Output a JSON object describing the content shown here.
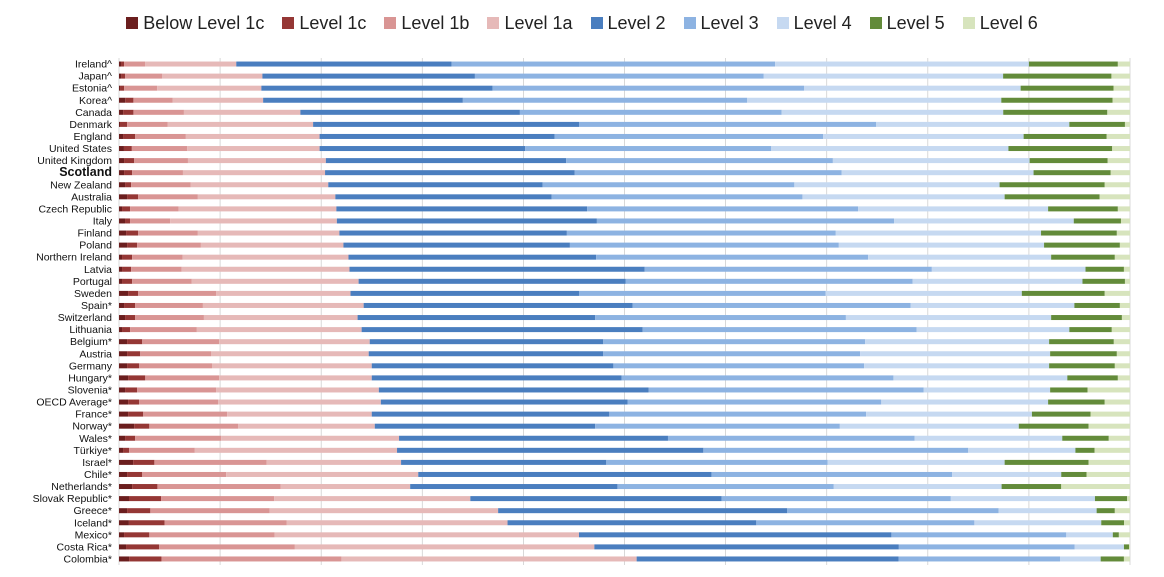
{
  "chart_data": {
    "type": "bar",
    "orientation": "horizontal",
    "stacked": true,
    "grid": true,
    "legend_position": "top",
    "xlim": [
      0,
      100
    ],
    "series": [
      {
        "name": "Below Level 1c",
        "color": "#6b1e1e"
      },
      {
        "name": "Level 1c",
        "color": "#953735"
      },
      {
        "name": "Level 1b",
        "color": "#d99594"
      },
      {
        "name": "Level 1a",
        "color": "#e6b9b8"
      },
      {
        "name": "Level 2",
        "color": "#4a7ebf"
      },
      {
        "name": "Level 3",
        "color": "#8db3e2"
      },
      {
        "name": "Level 4",
        "color": "#c6d9f1"
      },
      {
        "name": "Level 5",
        "color": "#638b3a"
      },
      {
        "name": "Level 6",
        "color": "#d7e4bd"
      }
    ],
    "categories": [
      "Ireland^",
      "Japan^",
      "Estonia^",
      "Korea^",
      "Canada",
      "Denmark",
      "England",
      "United States",
      "United Kingdom",
      "Scotland",
      "New Zealand",
      "Australia",
      "Czech Republic",
      "Italy",
      "Finland",
      "Poland",
      "Northern Ireland",
      "Latvia",
      "Portugal",
      "Sweden",
      "Spain*",
      "Switzerland",
      "Lithuania",
      "Belgium*",
      "Austria",
      "Germany",
      "Hungary*",
      "Slovenia*",
      "OECD Average*",
      "France*",
      "Norway*",
      "Wales*",
      "Türkiye*",
      "Israel*",
      "Chile*",
      "Netherlands*",
      "Slovak Republic*",
      "Greece*",
      "Iceland*",
      "Mexico*",
      "Costa Rica*",
      "Colombia*"
    ],
    "highlight": "Scotland",
    "values": [
      [
        0.2,
        0.3,
        2.1,
        9.0,
        21.3,
        32.0,
        25.1,
        8.8,
        1.2
      ],
      [
        0.2,
        0.4,
        3.6,
        9.7,
        20.6,
        28.0,
        23.2,
        10.5,
        1.8
      ],
      [
        0.1,
        0.4,
        3.2,
        10.1,
        22.4,
        30.2,
        21.0,
        9.0,
        1.6
      ],
      [
        0.6,
        0.8,
        3.8,
        8.8,
        19.4,
        27.6,
        24.7,
        10.8,
        1.7
      ],
      [
        0.4,
        1.0,
        4.9,
        11.3,
        21.3,
        25.4,
        21.5,
        10.1,
        2.2
      ],
      [
        0.1,
        0.7,
        4.0,
        14.4,
        26.3,
        29.4,
        19.1,
        5.5,
        0.5
      ],
      [
        0.4,
        1.2,
        5.0,
        13.2,
        23.2,
        26.5,
        19.8,
        8.2,
        2.3
      ],
      [
        0.5,
        0.8,
        5.6,
        13.4,
        20.8,
        24.9,
        24.0,
        10.5,
        1.8
      ],
      [
        0.5,
        1.0,
        5.3,
        13.6,
        23.7,
        26.3,
        19.4,
        7.7,
        2.2
      ],
      [
        0.5,
        0.8,
        5.0,
        14.0,
        24.6,
        26.3,
        18.9,
        7.6,
        1.9
      ],
      [
        0.6,
        0.6,
        5.9,
        13.6,
        21.2,
        24.9,
        20.3,
        10.4,
        2.5
      ],
      [
        0.8,
        1.1,
        5.9,
        13.6,
        21.4,
        24.8,
        20.0,
        9.4,
        3.0
      ],
      [
        0.3,
        0.8,
        4.8,
        15.6,
        24.8,
        26.8,
        18.8,
        6.9,
        1.2
      ],
      [
        0.6,
        0.5,
        4.0,
        16.6,
        25.9,
        29.6,
        17.9,
        4.7,
        0.9
      ],
      [
        0.7,
        1.2,
        5.9,
        14.0,
        22.5,
        26.6,
        20.3,
        7.5,
        1.3
      ],
      [
        0.8,
        1.0,
        6.3,
        14.1,
        22.4,
        26.6,
        20.3,
        7.5,
        1.0
      ],
      [
        0.3,
        1.0,
        5.0,
        16.4,
        24.5,
        26.9,
        18.1,
        6.3,
        1.5
      ],
      [
        0.3,
        0.9,
        5.0,
        16.6,
        29.2,
        28.4,
        15.2,
        3.8,
        0.6
      ],
      [
        0.3,
        1.0,
        5.9,
        16.5,
        26.4,
        28.4,
        16.8,
        4.2,
        0.5
      ],
      [
        0.9,
        1.0,
        7.7,
        13.3,
        22.6,
        24.4,
        19.4,
        8.2,
        2.5
      ],
      [
        0.5,
        1.1,
        6.7,
        15.9,
        26.6,
        27.5,
        16.2,
        4.5,
        1.0
      ],
      [
        0.6,
        1.0,
        6.8,
        15.2,
        23.5,
        24.8,
        20.3,
        7.0,
        0.8
      ],
      [
        0.3,
        0.8,
        6.6,
        16.3,
        27.8,
        27.1,
        15.1,
        4.2,
        1.8
      ],
      [
        0.8,
        1.5,
        7.6,
        14.9,
        23.1,
        25.9,
        18.2,
        6.4,
        1.6
      ],
      [
        0.8,
        1.3,
        7.0,
        15.6,
        23.2,
        25.4,
        18.8,
        6.6,
        1.3
      ],
      [
        0.8,
        1.2,
        7.2,
        15.8,
        23.9,
        24.8,
        18.3,
        6.5,
        1.5
      ],
      [
        0.9,
        1.7,
        7.3,
        15.1,
        24.7,
        26.9,
        17.2,
        5.0,
        1.2
      ],
      [
        0.6,
        1.2,
        7.8,
        16.1,
        26.7,
        27.2,
        12.5,
        3.7,
        4.2
      ],
      [
        0.9,
        1.1,
        7.8,
        16.1,
        24.4,
        25.1,
        16.5,
        5.6,
        2.5
      ],
      [
        0.9,
        1.5,
        8.3,
        14.3,
        23.5,
        25.4,
        16.4,
        5.8,
        3.9
      ],
      [
        1.5,
        1.5,
        8.8,
        13.5,
        21.8,
        24.2,
        17.7,
        6.9,
        4.1
      ],
      [
        0.6,
        1.0,
        8.5,
        17.6,
        26.6,
        24.4,
        14.6,
        4.6,
        2.1
      ],
      [
        0.4,
        0.6,
        6.5,
        20.0,
        30.3,
        26.2,
        10.6,
        1.9,
        3.5
      ],
      [
        1.4,
        2.1,
        11.1,
        13.3,
        20.3,
        21.9,
        17.5,
        8.3,
        4.1
      ],
      [
        0.8,
        1.5,
        8.3,
        19.0,
        29.0,
        23.8,
        10.8,
        2.5,
        4.3
      ],
      [
        1.3,
        2.5,
        12.2,
        12.8,
        20.5,
        21.4,
        16.6,
        5.9,
        6.8
      ],
      [
        1.0,
        3.2,
        11.3,
        19.6,
        25.1,
        22.9,
        14.4,
        3.2,
        0.3
      ],
      [
        0.8,
        2.3,
        11.8,
        22.6,
        28.6,
        20.9,
        9.7,
        1.8,
        1.5
      ],
      [
        1.0,
        3.6,
        12.3,
        22.3,
        25.1,
        22.0,
        12.8,
        2.3,
        0.6
      ],
      [
        0.5,
        2.5,
        12.4,
        30.1,
        30.9,
        17.3,
        4.6,
        0.6,
        1.1
      ],
      [
        0.7,
        3.3,
        13.5,
        29.8,
        30.3,
        17.5,
        4.9,
        0.5,
        0.1
      ],
      [
        1.0,
        3.2,
        17.8,
        29.2,
        25.9,
        16.0,
        4.0,
        2.3,
        0.6
      ]
    ]
  }
}
